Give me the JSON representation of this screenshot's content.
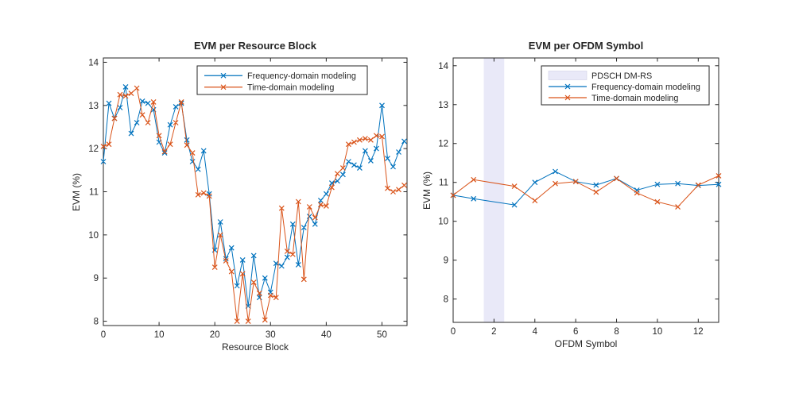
{
  "figure": {
    "background": "#ffffff",
    "axis_color": "#262626"
  },
  "chart_data": [
    {
      "type": "line",
      "title": "EVM per Resource Block",
      "xlabel": "Resource Block",
      "ylabel": "EVM (%)",
      "xlim": [
        0,
        54.5
      ],
      "ylim": [
        7.9,
        14.1
      ],
      "xticks": [
        0,
        10,
        20,
        30,
        40,
        50
      ],
      "yticks": [
        8,
        9,
        10,
        11,
        12,
        13,
        14
      ],
      "grid": false,
      "legend_position": "upper-right-inside",
      "marker": "x",
      "series": [
        {
          "name": "Frequency-domain modeling",
          "color": "#0072BD",
          "x_start": 0,
          "values": [
            11.7,
            13.05,
            12.7,
            12.95,
            13.43,
            12.35,
            12.6,
            13.1,
            13.05,
            12.9,
            12.15,
            11.9,
            12.55,
            12.97,
            13.05,
            12.2,
            11.7,
            11.52,
            11.95,
            10.95,
            9.65,
            10.3,
            9.45,
            9.7,
            8.82,
            9.42,
            8.35,
            9.52,
            8.55,
            9.0,
            8.67,
            9.34,
            9.28,
            9.48,
            10.25,
            9.31,
            10.17,
            10.43,
            10.25,
            10.8,
            10.95,
            11.2,
            11.25,
            11.4,
            11.7,
            11.62,
            11.55,
            11.95,
            11.72,
            12.0,
            13.0,
            11.77,
            11.58,
            11.92,
            12.17
          ]
        },
        {
          "name": "Time-domain modeling",
          "color": "#D95319",
          "x_start": 0,
          "values": [
            12.05,
            12.1,
            12.7,
            13.25,
            13.22,
            13.28,
            13.4,
            12.78,
            12.6,
            13.08,
            12.3,
            11.93,
            12.1,
            12.6,
            13.08,
            12.08,
            11.9,
            10.93,
            10.97,
            10.9,
            9.25,
            10.0,
            9.4,
            9.15,
            8.0,
            9.1,
            8.0,
            8.9,
            8.65,
            8.03,
            8.6,
            8.55,
            10.62,
            9.62,
            9.55,
            10.77,
            8.97,
            10.65,
            10.4,
            10.7,
            10.67,
            11.1,
            11.42,
            11.55,
            12.1,
            12.15,
            12.2,
            12.23,
            12.2,
            12.3,
            12.28,
            11.08,
            11.0,
            11.05,
            11.15
          ]
        }
      ]
    },
    {
      "type": "line",
      "title": "EVM per OFDM Symbol",
      "xlabel": "OFDM Symbol",
      "ylabel": "EVM (%)",
      "xlim": [
        0,
        13
      ],
      "ylim": [
        7.4,
        14.2
      ],
      "xticks": [
        0,
        2,
        4,
        6,
        8,
        10,
        12
      ],
      "yticks": [
        8,
        9,
        10,
        11,
        12,
        13,
        14
      ],
      "grid": false,
      "legend_position": "upper-right-inside",
      "marker": "x",
      "band": {
        "label": "PDSCH DM-RS",
        "x_range": [
          1.5,
          2.5
        ],
        "color": "#E9E9F8"
      },
      "series": [
        {
          "name": "Frequency-domain modeling",
          "color": "#0072BD",
          "x": [
            0,
            1,
            3,
            4,
            5,
            6,
            7,
            8,
            9,
            10,
            11,
            12,
            13
          ],
          "values": [
            10.67,
            10.58,
            10.42,
            11.0,
            11.28,
            11.02,
            10.93,
            11.1,
            10.8,
            10.95,
            10.97,
            10.92,
            10.95
          ]
        },
        {
          "name": "Time-domain modeling",
          "color": "#D95319",
          "x": [
            0,
            1,
            3,
            4,
            5,
            6,
            7,
            8,
            9,
            10,
            11,
            12,
            13
          ],
          "values": [
            10.67,
            11.07,
            10.9,
            10.53,
            10.97,
            11.02,
            10.75,
            11.1,
            10.73,
            10.5,
            10.37,
            10.93,
            11.17
          ]
        }
      ]
    }
  ]
}
